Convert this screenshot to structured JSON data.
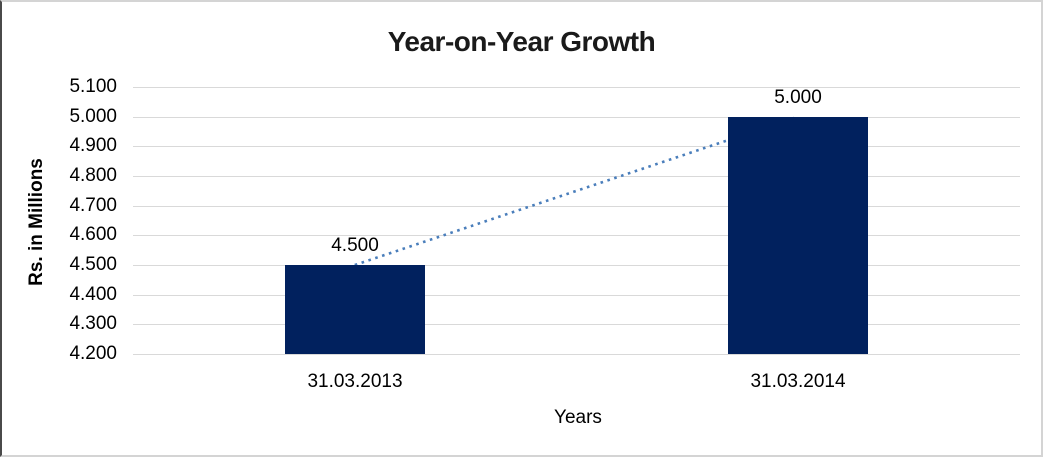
{
  "chart_data": {
    "type": "bar",
    "title": "Year-on-Year Growth",
    "xlabel": "Years",
    "ylabel": "Rs. in Millions",
    "categories": [
      "31.03.2013",
      "31.03.2014"
    ],
    "values": [
      4.5,
      5.0
    ],
    "value_labels": [
      "4.500",
      "5.000"
    ],
    "ylim": [
      4.2,
      5.1
    ],
    "ytick_step": 0.1,
    "ytick_labels": [
      "4.200",
      "4.300",
      "4.400",
      "4.500",
      "4.600",
      "4.700",
      "4.800",
      "4.900",
      "5.000",
      "5.100"
    ],
    "grid": true,
    "legend": "none",
    "bar_color": "#01215e",
    "gridline_color": "#d9d9d9",
    "trendline": {
      "style": "dotted",
      "color": "#4a7ebb",
      "from_category_index": 0,
      "from_value": 4.5,
      "to_category_index": 1,
      "to_value": 5.0
    }
  }
}
